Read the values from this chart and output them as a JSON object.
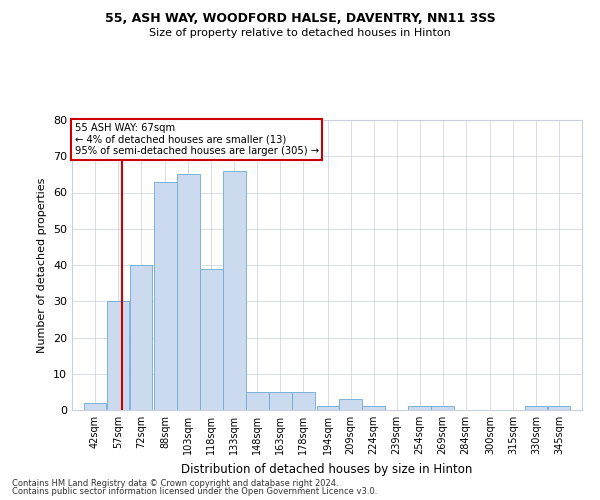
{
  "title1": "55, ASH WAY, WOODFORD HALSE, DAVENTRY, NN11 3SS",
  "title2": "Size of property relative to detached houses in Hinton",
  "xlabel": "Distribution of detached houses by size in Hinton",
  "ylabel": "Number of detached properties",
  "footnote1": "Contains HM Land Registry data © Crown copyright and database right 2024.",
  "footnote2": "Contains public sector information licensed under the Open Government Licence v3.0.",
  "annotation_line1": "55 ASH WAY: 67sqm",
  "annotation_line2": "← 4% of detached houses are smaller (13)",
  "annotation_line3": "95% of semi-detached houses are larger (305) →",
  "property_size": 67,
  "bar_color": "#ccdaf0",
  "bar_edge_color": "#6aaad4",
  "vline_color": "#cc0000",
  "annotation_box_color": "#cc0000",
  "background_color": "#ffffff",
  "grid_color": "#c8d0dc",
  "categories": [
    "42sqm",
    "57sqm",
    "72sqm",
    "88sqm",
    "103sqm",
    "118sqm",
    "133sqm",
    "148sqm",
    "163sqm",
    "178sqm",
    "194sqm",
    "209sqm",
    "224sqm",
    "239sqm",
    "254sqm",
    "269sqm",
    "284sqm",
    "300sqm",
    "315sqm",
    "330sqm",
    "345sqm"
  ],
  "bin_edges": [
    42,
    57,
    72,
    88,
    103,
    118,
    133,
    148,
    163,
    178,
    194,
    209,
    224,
    239,
    254,
    269,
    284,
    300,
    315,
    330,
    345
  ],
  "bin_width": 15,
  "values": [
    2,
    30,
    40,
    63,
    65,
    39,
    66,
    5,
    5,
    5,
    1,
    3,
    1,
    0,
    1,
    1,
    0,
    0,
    0,
    1,
    1
  ],
  "ylim": [
    0,
    80
  ],
  "yticks": [
    0,
    10,
    20,
    30,
    40,
    50,
    60,
    70,
    80
  ],
  "figsize": [
    6.0,
    5.0
  ],
  "dpi": 100
}
